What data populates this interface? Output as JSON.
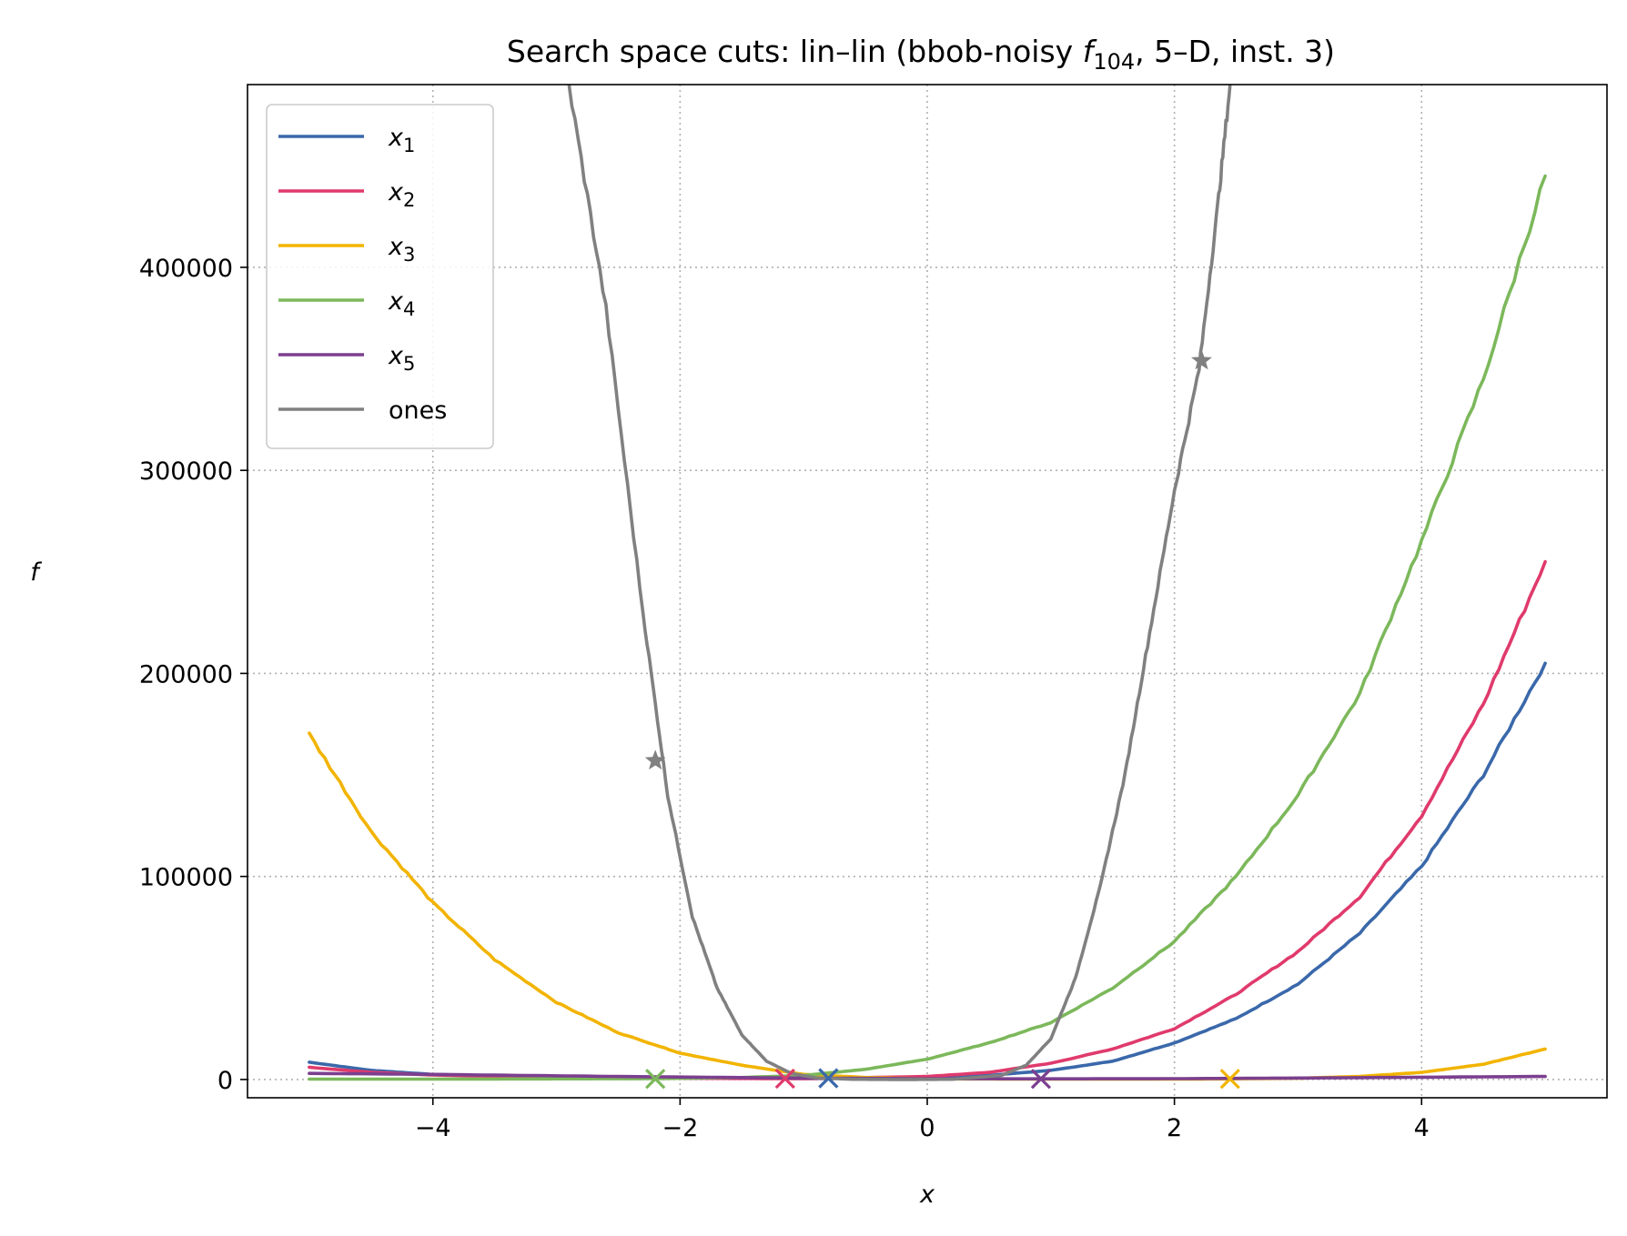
{
  "chart_data": {
    "type": "line",
    "title": "Search space cuts: lin–lin (bbob-noisy f₁₀₄, 5–D, inst. 3)",
    "title_parts": {
      "before": "Search space cuts: lin–lin (bbob-noisy ",
      "func": "f",
      "sub": "104",
      "after": ", 5–D, inst. 3)"
    },
    "xlabel": "x",
    "ylabel": "f",
    "xlim": [
      -5.5,
      5.5
    ],
    "ylim": [
      -9000,
      490000
    ],
    "xticks": [
      -4,
      -2,
      0,
      2,
      4
    ],
    "xtick_labels": [
      "−4",
      "−2",
      "0",
      "2",
      "4"
    ],
    "yticks": [
      0,
      100000,
      200000,
      300000,
      400000
    ],
    "ytick_labels": [
      "0",
      "100000",
      "200000",
      "300000",
      "400000"
    ],
    "grid": true,
    "legend_position": "upper-left",
    "series": [
      {
        "name": "x1",
        "label_base": "x",
        "label_sub": "1",
        "color": "#3a68aa",
        "points": [
          [
            -5,
            8500
          ],
          [
            -4.5,
            4500
          ],
          [
            -4,
            2500
          ],
          [
            -3,
            1000
          ],
          [
            -2,
            700
          ],
          [
            -1,
            500
          ],
          [
            -0.8,
            500
          ],
          [
            0,
            1000
          ],
          [
            0.5,
            2000
          ],
          [
            1,
            4500
          ],
          [
            1.5,
            9000
          ],
          [
            2,
            18000
          ],
          [
            2.5,
            30000
          ],
          [
            3,
            47000
          ],
          [
            3.5,
            72000
          ],
          [
            4,
            105000
          ],
          [
            4.5,
            150000
          ],
          [
            5,
            205000
          ]
        ],
        "marker": {
          "type": "x",
          "x": -0.8,
          "y": 600
        }
      },
      {
        "name": "x2",
        "label_base": "x",
        "label_sub": "2",
        "color": "#e03a6c",
        "points": [
          [
            -5,
            6000
          ],
          [
            -4.5,
            3500
          ],
          [
            -4,
            2200
          ],
          [
            -3,
            1000
          ],
          [
            -2,
            600
          ],
          [
            -1,
            400
          ],
          [
            0,
            1500
          ],
          [
            0.5,
            3500
          ],
          [
            1,
            8000
          ],
          [
            1.5,
            15000
          ],
          [
            2,
            25000
          ],
          [
            2.5,
            42000
          ],
          [
            3,
            63000
          ],
          [
            3.5,
            90000
          ],
          [
            4,
            130000
          ],
          [
            4.5,
            185000
          ],
          [
            5,
            255000
          ]
        ],
        "marker": {
          "type": "x",
          "x": -1.15,
          "y": 400
        }
      },
      {
        "name": "x3",
        "label_base": "x",
        "label_sub": "3",
        "color": "#f2b400",
        "points": [
          [
            -5,
            170000
          ],
          [
            -4.5,
            122000
          ],
          [
            -4,
            87000
          ],
          [
            -3.5,
            59000
          ],
          [
            -3,
            38000
          ],
          [
            -2.5,
            23000
          ],
          [
            -2,
            13000
          ],
          [
            -1.5,
            7000
          ],
          [
            -1,
            2500
          ],
          [
            -0.5,
            1000
          ],
          [
            0,
            300
          ],
          [
            1,
            200
          ],
          [
            2,
            200
          ],
          [
            2.45,
            300
          ],
          [
            3,
            600
          ],
          [
            3.5,
            1500
          ],
          [
            4,
            3500
          ],
          [
            4.5,
            7500
          ],
          [
            5,
            15000
          ]
        ],
        "marker": {
          "type": "x",
          "x": 2.45,
          "y": 300
        }
      },
      {
        "name": "x4",
        "label_base": "x",
        "label_sub": "4",
        "color": "#7cb85b",
        "points": [
          [
            -5,
            200
          ],
          [
            -4,
            200
          ],
          [
            -3,
            300
          ],
          [
            -2.2,
            400
          ],
          [
            -1.5,
            1000
          ],
          [
            -1,
            2000
          ],
          [
            -0.5,
            5000
          ],
          [
            0,
            10000
          ],
          [
            0.5,
            18000
          ],
          [
            1,
            28000
          ],
          [
            1.5,
            45000
          ],
          [
            2,
            68000
          ],
          [
            2.5,
            100000
          ],
          [
            3,
            140000
          ],
          [
            3.5,
            190000
          ],
          [
            4,
            265000
          ],
          [
            4.5,
            345000
          ],
          [
            5,
            445000
          ]
        ],
        "marker": {
          "type": "x",
          "x": -2.2,
          "y": 300
        }
      },
      {
        "name": "x5",
        "label_base": "x",
        "label_sub": "5",
        "color": "#7b3f8f",
        "points": [
          [
            -5,
            3000
          ],
          [
            -4,
            2500
          ],
          [
            -3,
            1800
          ],
          [
            -2,
            1200
          ],
          [
            -1,
            700
          ],
          [
            0,
            400
          ],
          [
            0.92,
            300
          ],
          [
            2,
            400
          ],
          [
            3,
            700
          ],
          [
            4,
            1100
          ],
          [
            5,
            1500
          ]
        ],
        "marker": {
          "type": "x",
          "x": 0.92,
          "y": 300
        }
      },
      {
        "name": "ones",
        "label_base": "ones",
        "label_sub": "",
        "color": "#808080",
        "points": [
          [
            -2.9,
            490000
          ],
          [
            -2.6,
            380000
          ],
          [
            -2.3,
            230000
          ],
          [
            -2.1,
            140000
          ],
          [
            -1.9,
            80000
          ],
          [
            -1.7,
            45000
          ],
          [
            -1.5,
            22000
          ],
          [
            -1.3,
            9000
          ],
          [
            -1.1,
            3000
          ],
          [
            -0.9,
            800
          ],
          [
            -0.6,
            100
          ],
          [
            -0.2,
            0
          ],
          [
            0.2,
            100
          ],
          [
            0.6,
            2000
          ],
          [
            0.8,
            7000
          ],
          [
            1.0,
            20000
          ],
          [
            1.2,
            50000
          ],
          [
            1.4,
            95000
          ],
          [
            1.6,
            150000
          ],
          [
            1.8,
            220000
          ],
          [
            2.0,
            290000
          ],
          [
            2.2,
            350000
          ],
          [
            2.35,
            430000
          ],
          [
            2.45,
            490000
          ]
        ],
        "marker": {
          "type": "star",
          "points": [
            [
              -2.2,
              157000
            ],
            [
              2.22,
              354000
            ]
          ]
        }
      }
    ]
  }
}
